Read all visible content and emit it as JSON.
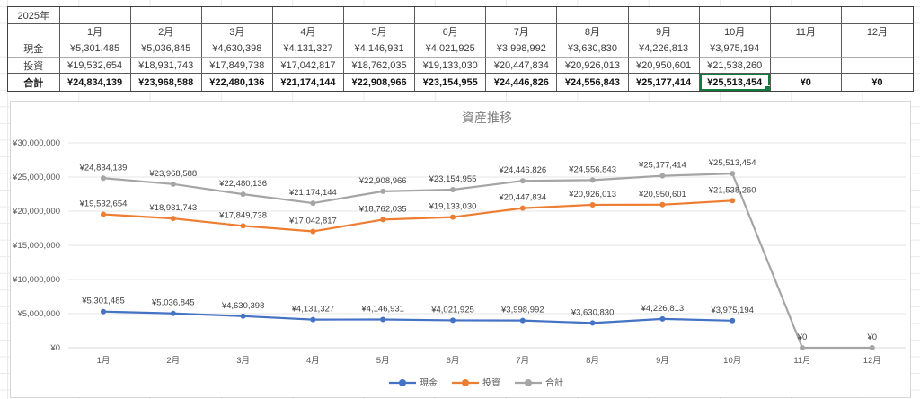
{
  "sheet": {
    "year_label": "2025年",
    "currency_prefix": "¥",
    "selected_cell": {
      "row": "合計",
      "month": "10月",
      "value": 25513454,
      "border_color": "#107C41"
    }
  },
  "table": {
    "months": [
      "1月",
      "2月",
      "3月",
      "4月",
      "5月",
      "6月",
      "7月",
      "8月",
      "9月",
      "10月",
      "11月",
      "12月"
    ],
    "rows": [
      {
        "key": "cash",
        "label": "現金",
        "bold": false,
        "values": [
          5301485,
          5036845,
          4630398,
          4131327,
          4146931,
          4021925,
          3998992,
          3630830,
          4226813,
          3975194,
          null,
          null
        ]
      },
      {
        "key": "invest",
        "label": "投資",
        "bold": false,
        "values": [
          19532654,
          18931743,
          17849738,
          17042817,
          18762035,
          19133030,
          20447834,
          20926013,
          20950601,
          21538260,
          null,
          null
        ]
      },
      {
        "key": "total",
        "label": "合計",
        "bold": true,
        "values": [
          24834139,
          23968588,
          22480136,
          21174144,
          22908966,
          23154955,
          24446826,
          24556843,
          25177414,
          25513454,
          0,
          0
        ]
      }
    ]
  },
  "chart_data": {
    "type": "line",
    "title": "資産推移",
    "title_color": "#7F7F7F",
    "categories": [
      "1月",
      "2月",
      "3月",
      "4月",
      "5月",
      "6月",
      "7月",
      "8月",
      "9月",
      "10月",
      "11月",
      "12月"
    ],
    "series": [
      {
        "name": "現金",
        "color": "#4472C4",
        "values": [
          5301485,
          5036845,
          4630398,
          4131327,
          4146931,
          4021925,
          3998992,
          3630830,
          4226813,
          3975194
        ]
      },
      {
        "name": "投資",
        "color": "#ED7D31",
        "values": [
          19532654,
          18931743,
          17849738,
          17042817,
          18762035,
          19133030,
          20447834,
          20926013,
          20950601,
          21538260
        ]
      },
      {
        "name": "合計",
        "color": "#A5A5A5",
        "values": [
          24834139,
          23968588,
          22480136,
          21174144,
          22908966,
          23154955,
          24446826,
          24556843,
          25177414,
          25513454,
          0,
          0
        ]
      }
    ],
    "ylim": [
      0,
      30000000
    ],
    "y_tick_step": 5000000,
    "y_tick_labels": [
      "¥0",
      "¥5,000,000",
      "¥10,000,000",
      "¥15,000,000",
      "¥20,000,000",
      "¥25,000,000",
      "¥30,000,000"
    ],
    "grid": true,
    "gridline_color": "#e6e6e6",
    "axis_text_color": "#595959",
    "data_label_color": "#3f3f3f",
    "data_labels": true,
    "legend_position": "bottom",
    "legend": [
      "現金",
      "投資",
      "合計"
    ]
  }
}
